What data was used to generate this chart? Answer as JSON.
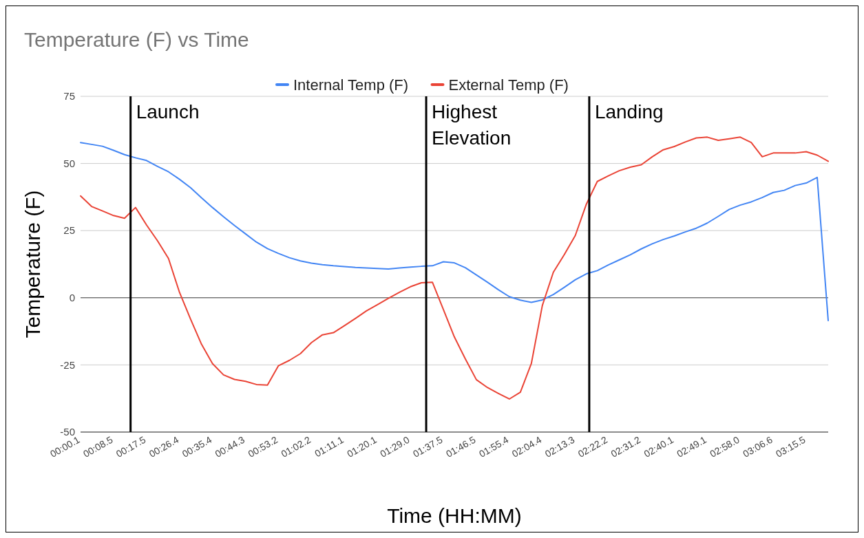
{
  "chart_data": {
    "type": "line",
    "title": "Temperature (F) vs Time",
    "xlabel": "Time (HH:MM)",
    "ylabel": "Temperature (F)",
    "categories": [
      "00:00.1",
      null,
      null,
      "00:08.5",
      null,
      null,
      "00:17.5",
      null,
      null,
      "00:26.4",
      null,
      null,
      "00:35.4",
      null,
      null,
      "00:44.3",
      null,
      null,
      "00:53.2",
      null,
      null,
      "01:02.2",
      null,
      null,
      "01:11.1",
      null,
      null,
      "01:20.1",
      null,
      null,
      "01:29.0",
      null,
      null,
      "01:37.5",
      null,
      null,
      "01:46.5",
      null,
      null,
      "01:55.4",
      null,
      null,
      "02:04.4",
      null,
      null,
      "02:13.3",
      null,
      null,
      "02:22.2",
      null,
      null,
      "02:31.2",
      null,
      null,
      "02:40.1",
      null,
      null,
      "02:49.1",
      null,
      null,
      "02:58.0",
      null,
      null,
      "03:06.6",
      null,
      null,
      "03:15.5",
      null,
      null
    ],
    "ylim": [
      -50,
      75
    ],
    "yticks": [
      -50,
      -25,
      0,
      25,
      50,
      75
    ],
    "grid": "y",
    "legend": "top",
    "marker": "none",
    "line_style": "solid",
    "annotations": [
      "Launch",
      "Highest Elevation",
      "Landing"
    ],
    "series": [
      {
        "name": "Internal Temp (F)",
        "color": "#4285f4",
        "values": [
          57.8,
          57.1,
          56.4,
          54.9,
          53.3,
          52.1,
          51.1,
          48.9,
          46.9,
          44.1,
          41,
          37.2,
          33.6,
          30.2,
          26.9,
          23.8,
          20.7,
          18.3,
          16.5,
          14.9,
          13.7,
          12.9,
          12.3,
          11.9,
          11.6,
          11.3,
          11.1,
          10.9,
          10.7,
          11.1,
          11.4,
          11.7,
          11.9,
          13.4,
          13,
          11.2,
          8.5,
          5.8,
          3,
          0.4,
          -0.9,
          -1.7,
          -0.8,
          1.2,
          3.9,
          6.7,
          8.9,
          10.1,
          12.2,
          14.1,
          16,
          18.2,
          20.1,
          21.7,
          23,
          24.5,
          25.9,
          27.8,
          30.3,
          32.9,
          34.5,
          35.7,
          37.3,
          39.2,
          40,
          41.8,
          42.7,
          44.8,
          -8.5
        ]
      },
      {
        "name": "External Temp (F)",
        "color": "#ea4335",
        "values": [
          37.9,
          34,
          32.3,
          30.6,
          29.6,
          33.6,
          27.1,
          21.2,
          14.6,
          2,
          -7.9,
          -17.3,
          -24.5,
          -28.7,
          -30.4,
          -31.1,
          -32.3,
          -32.5,
          -25.3,
          -23.3,
          -20.8,
          -16.7,
          -13.8,
          -13,
          -10.4,
          -7.7,
          -4.9,
          -2.6,
          -0.2,
          2,
          4.1,
          5.6,
          5.8,
          -4.4,
          -14.6,
          -22.8,
          -30.5,
          -33.4,
          -35.6,
          -37.7,
          -35.2,
          -24.5,
          -2.9,
          9.5,
          16.1,
          23.2,
          34.8,
          43.3,
          45.4,
          47.3,
          48.6,
          49.5,
          52.5,
          55.1,
          56.3,
          58,
          59.5,
          59.8,
          58.6,
          59.2,
          59.8,
          57.8,
          52.5,
          53.9,
          53.9,
          53.9,
          54.4,
          53.1,
          50.8
        ]
      }
    ]
  }
}
